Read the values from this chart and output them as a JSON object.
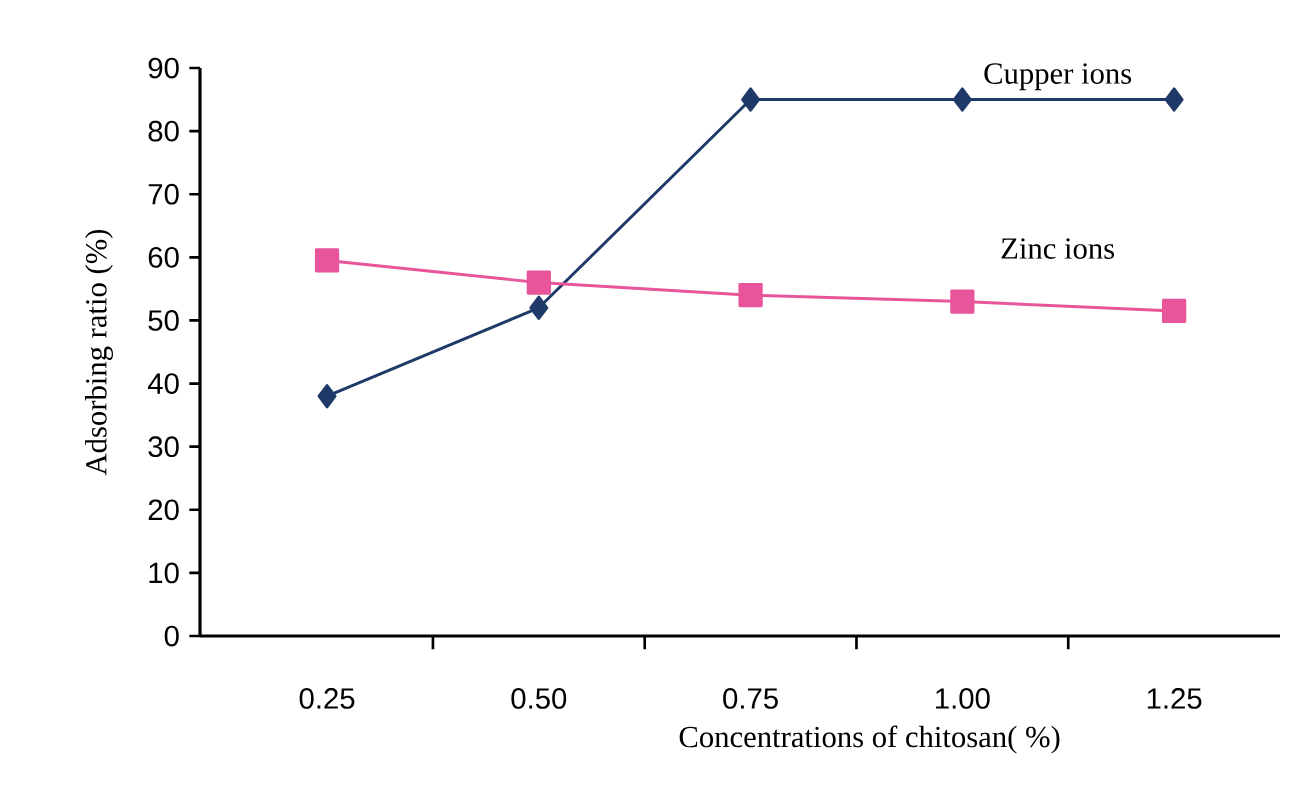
{
  "chart_data": {
    "type": "line",
    "xlabel": "Concentrations of chitosan( %)",
    "ylabel": "Adsorbing ratio (%)",
    "categories": [
      "0.25",
      "0.50",
      "0.75",
      "1.00",
      "1.25"
    ],
    "series": [
      {
        "name": "Cupper ions",
        "color": "#1f3a68",
        "marker": "diamond",
        "values": [
          38,
          52,
          85,
          85,
          85
        ]
      },
      {
        "name": "Zinc ions",
        "color": "#e8559a",
        "marker": "square",
        "values": [
          59.5,
          56,
          54,
          53,
          51.5
        ]
      }
    ],
    "ylim": [
      0,
      90
    ],
    "yticks": [
      0,
      10,
      20,
      30,
      40,
      50,
      60,
      70,
      80,
      90
    ],
    "legend": false,
    "grid": false
  }
}
